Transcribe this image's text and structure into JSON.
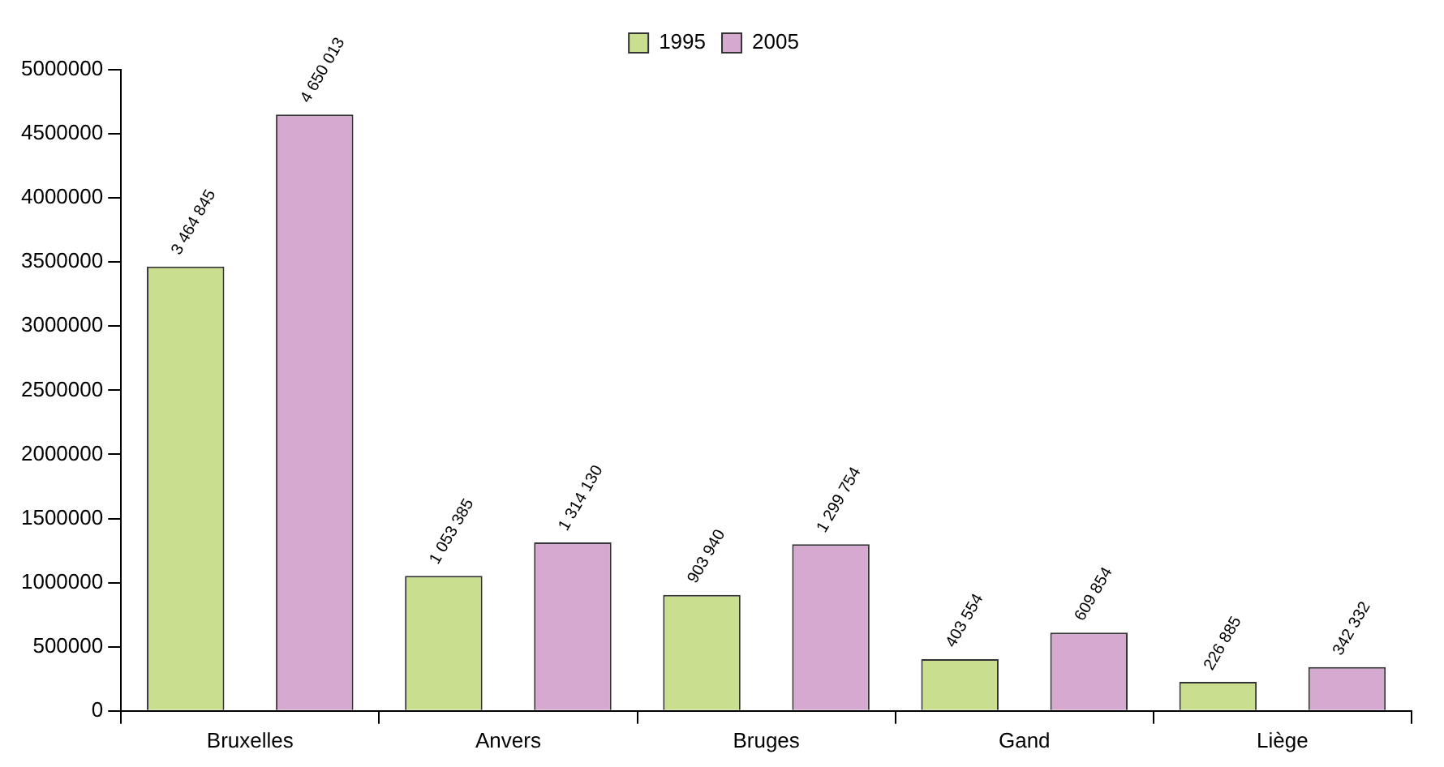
{
  "chart_data": {
    "type": "bar",
    "categories": [
      "Bruxelles",
      "Anvers",
      "Bruges",
      "Gand",
      "Liège"
    ],
    "series": [
      {
        "name": "1995",
        "color": "#c9df8f",
        "values": [
          3464845,
          1053385,
          903940,
          403554,
          226885
        ],
        "value_labels": [
          "3 464 845",
          "1 053 385",
          "903 940",
          "403 554",
          "226 885"
        ]
      },
      {
        "name": "2005",
        "color": "#d5a9d0",
        "values": [
          4650013,
          1314130,
          1299754,
          609854,
          342332
        ],
        "value_labels": [
          "4 650 013",
          "1 314 130",
          "1 299 754",
          "609 854",
          "342 332"
        ]
      }
    ],
    "ylim": [
      0,
      5000000
    ],
    "yticks": [
      0,
      500000,
      1000000,
      1500000,
      2000000,
      2500000,
      3000000,
      3500000,
      4000000,
      4500000,
      5000000
    ],
    "legend": "top"
  }
}
